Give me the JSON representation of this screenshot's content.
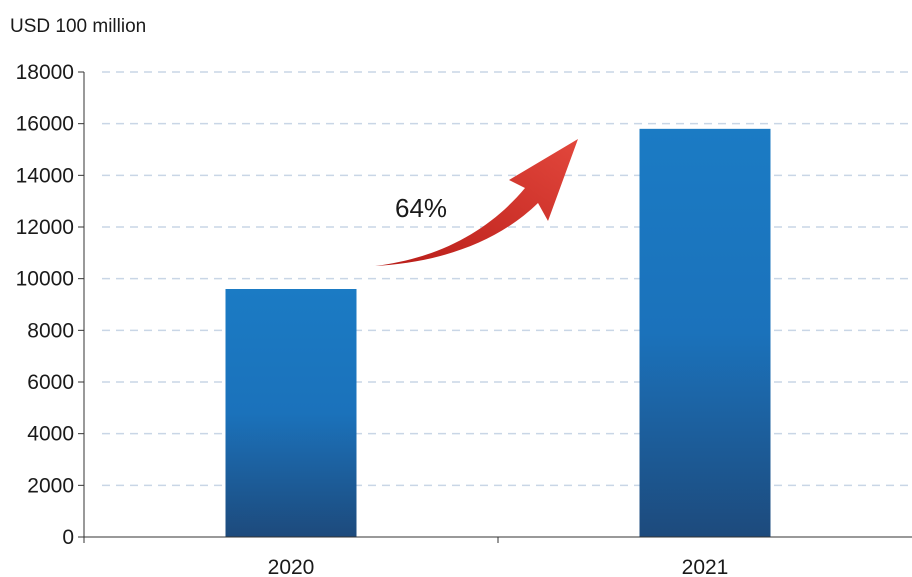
{
  "chart_data": {
    "type": "bar",
    "y_unit_label": "USD 100 million",
    "categories": [
      "2020",
      "2021"
    ],
    "values": [
      9600,
      15800
    ],
    "ylim": [
      0,
      18000
    ],
    "yticks": [
      0,
      2000,
      4000,
      6000,
      8000,
      10000,
      12000,
      14000,
      16000,
      18000
    ],
    "grid": true,
    "annotation": {
      "text": "64%"
    },
    "colors": {
      "bar_top": "#1b7bc4",
      "bar_bottom": "#1d4a7c",
      "arrow": "#d8322a",
      "grid": "#c9d6e6",
      "axis": "#333333"
    }
  }
}
